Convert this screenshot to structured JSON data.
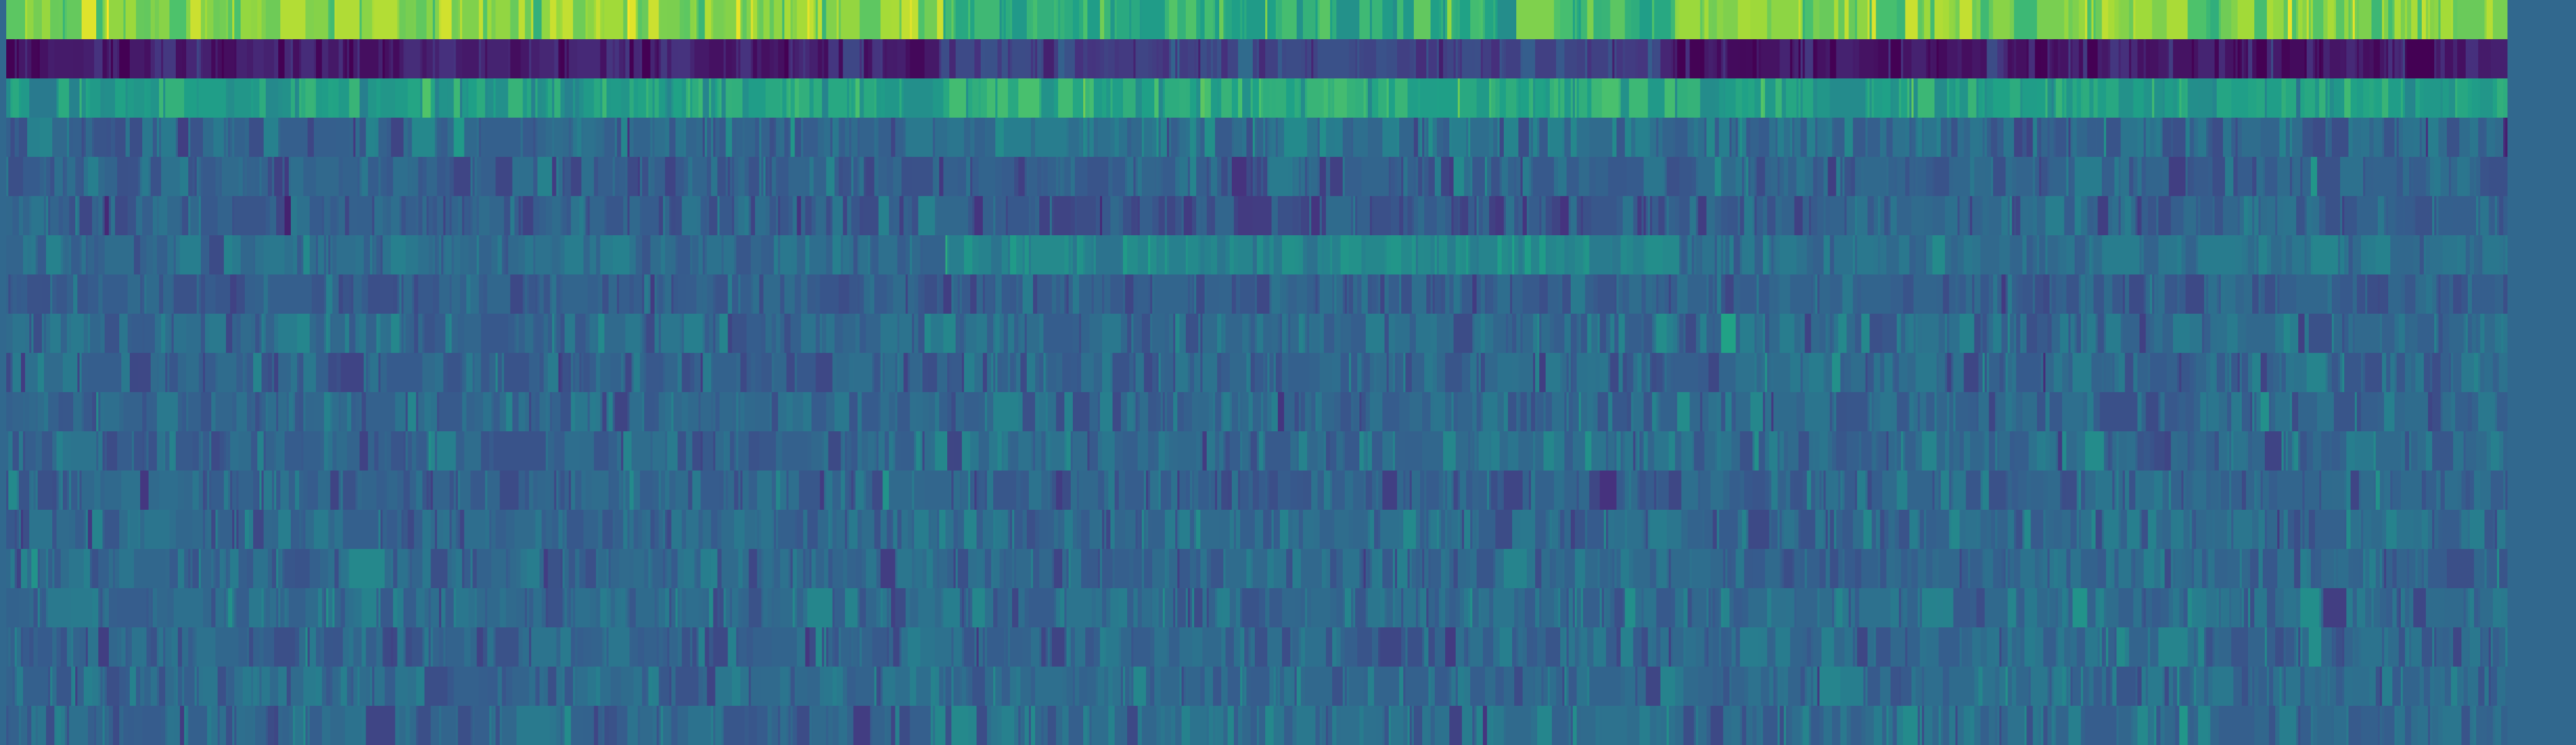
{
  "chart_data": {
    "type": "heatmap",
    "title": "",
    "xlabel": "",
    "ylabel": "",
    "colormap": "viridis",
    "colormap_stops": [
      "#440154",
      "#46327e",
      "#365c8d",
      "#277f8e",
      "#1fa187",
      "#4ac16d",
      "#a0da39",
      "#fde725"
    ],
    "value_range": [
      0,
      1
    ],
    "outside_fill": "#31688e",
    "row_count": 19,
    "column_count": 1200,
    "filled_columns": 1196,
    "segment_boundaries": [
      446,
      796
    ],
    "row_profiles": [
      {
        "row": 0,
        "mean": 0.8,
        "spread": 0.07,
        "segment_means": [
          0.82,
          0.62,
          0.8
        ]
      },
      {
        "row": 1,
        "mean": 0.08,
        "spread": 0.05,
        "segment_means": [
          0.09,
          0.2,
          0.07
        ]
      },
      {
        "row": 2,
        "mean": 0.58,
        "spread": 0.07,
        "segment_means": [
          0.56,
          0.62,
          0.56
        ]
      },
      {
        "row": 3,
        "mean": 0.34,
        "spread": 0.07,
        "segment_means": [
          0.33,
          0.38,
          0.33
        ]
      },
      {
        "row": 4,
        "mean": 0.32,
        "spread": 0.06,
        "segment_means": [
          0.31,
          0.31,
          0.32
        ]
      },
      {
        "row": 5,
        "mean": 0.31,
        "spread": 0.06,
        "segment_means": [
          0.3,
          0.28,
          0.31
        ]
      },
      {
        "row": 6,
        "mean": 0.37,
        "spread": 0.05,
        "segment_means": [
          0.35,
          0.46,
          0.36
        ]
      },
      {
        "row": 7,
        "mean": 0.3,
        "spread": 0.05,
        "segment_means": [
          0.3,
          0.3,
          0.3
        ]
      },
      {
        "row": 8,
        "mean": 0.35,
        "spread": 0.06,
        "segment_means": [
          0.34,
          0.34,
          0.35
        ]
      },
      {
        "row": 9,
        "mean": 0.33,
        "spread": 0.06,
        "segment_means": [
          0.32,
          0.33,
          0.33
        ]
      },
      {
        "row": 10,
        "mean": 0.33,
        "spread": 0.06,
        "segment_means": [
          0.33,
          0.33,
          0.33
        ]
      },
      {
        "row": 11,
        "mean": 0.34,
        "spread": 0.06,
        "segment_means": [
          0.33,
          0.35,
          0.35
        ]
      },
      {
        "row": 12,
        "mean": 0.33,
        "spread": 0.06,
        "segment_means": [
          0.32,
          0.3,
          0.34
        ]
      },
      {
        "row": 13,
        "mean": 0.34,
        "spread": 0.06,
        "segment_means": [
          0.33,
          0.35,
          0.35
        ]
      },
      {
        "row": 14,
        "mean": 0.33,
        "spread": 0.06,
        "segment_means": [
          0.33,
          0.33,
          0.34
        ]
      },
      {
        "row": 15,
        "mean": 0.34,
        "spread": 0.06,
        "segment_means": [
          0.34,
          0.35,
          0.35
        ]
      },
      {
        "row": 16,
        "mean": 0.33,
        "spread": 0.06,
        "segment_means": [
          0.32,
          0.33,
          0.34
        ]
      },
      {
        "row": 17,
        "mean": 0.34,
        "spread": 0.06,
        "segment_means": [
          0.34,
          0.35,
          0.35
        ]
      },
      {
        "row": 18,
        "mean": 0.34,
        "spread": 0.06,
        "segment_means": [
          0.34,
          0.35,
          0.35
        ]
      }
    ],
    "grid": false,
    "legend": "none",
    "axes_visible": false
  }
}
